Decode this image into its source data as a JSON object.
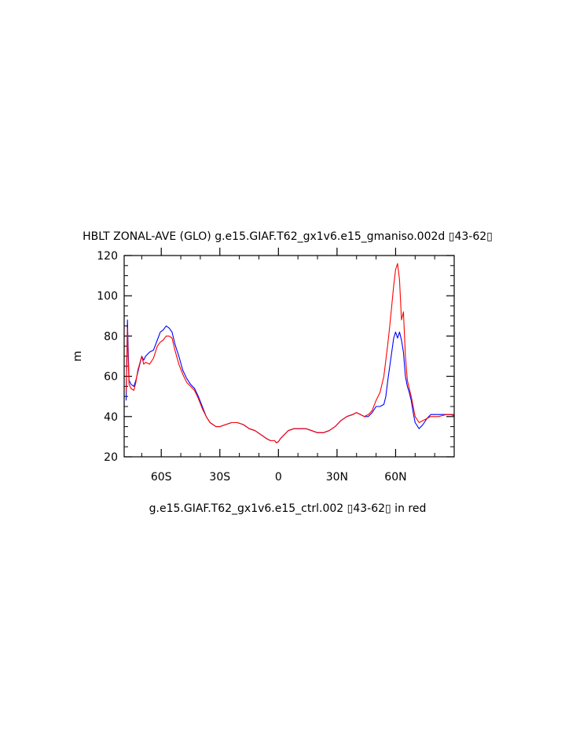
{
  "chart_data": {
    "type": "line",
    "title": "HBLT ZONAL-AVE (GLO) g.e15.GIAF.T62_gx1v6.e15_gmaniso.002d ▯43-62▯",
    "subtitle": "g.e15.GIAF.T62_gx1v6.e15_ctrl.002 ▯43-62▯ in red",
    "xlabel": "",
    "ylabel": "m",
    "xlim": [
      -79,
      90
    ],
    "ylim": [
      20,
      120
    ],
    "grid": false,
    "x_ticks": [
      {
        "value": -60,
        "label": "60S"
      },
      {
        "value": -30,
        "label": "30S"
      },
      {
        "value": 0,
        "label": "0"
      },
      {
        "value": 30,
        "label": "30N"
      },
      {
        "value": 60,
        "label": "60N"
      }
    ],
    "y_ticks": [
      {
        "value": 20,
        "label": "20"
      },
      {
        "value": 40,
        "label": "40"
      },
      {
        "value": 60,
        "label": "60"
      },
      {
        "value": 80,
        "label": "80"
      },
      {
        "value": 100,
        "label": "100"
      },
      {
        "value": 120,
        "label": "120"
      }
    ],
    "series": [
      {
        "color": "#0000ff",
        "x": [
          -78,
          -77.3,
          -77,
          -76.5,
          -75.5,
          -74,
          -73,
          -72,
          -70,
          -69,
          -68,
          -66,
          -64,
          -62,
          -60.5,
          -59,
          -57.5,
          -56,
          -54.5,
          -53,
          -51,
          -49,
          -47,
          -45,
          -43,
          -41,
          -39,
          -37,
          -35,
          -32,
          -30,
          -27,
          -24,
          -21,
          -18,
          -15,
          -12,
          -9,
          -6,
          -4,
          -2,
          -1,
          0,
          1,
          3,
          5,
          8,
          11,
          14,
          17,
          20,
          23,
          26,
          29,
          32,
          35,
          38,
          40,
          42,
          44,
          46,
          48,
          50,
          52,
          54,
          55,
          56,
          57,
          58,
          59,
          60,
          61,
          62,
          63,
          64,
          65,
          66,
          67,
          68,
          69,
          70,
          72,
          74,
          76,
          78,
          80,
          82,
          84,
          86,
          88,
          90
        ],
        "y": [
          48,
          88,
          75,
          58,
          56,
          55,
          58,
          62,
          70,
          68,
          70,
          72,
          73,
          78,
          82,
          83,
          85,
          84,
          82,
          76,
          70,
          63,
          59,
          56,
          54,
          50,
          45,
          40,
          37,
          35,
          35,
          36,
          37,
          37,
          36,
          34,
          33,
          31,
          29,
          28,
          28,
          27,
          27.5,
          29,
          31,
          33,
          34,
          34,
          34,
          33,
          32,
          32,
          33,
          35,
          38,
          40,
          41,
          42,
          41,
          40,
          40,
          42,
          45,
          45,
          46,
          50,
          58,
          65,
          72,
          79,
          82,
          79,
          82,
          78,
          72,
          60,
          55,
          52,
          48,
          42,
          37,
          34,
          36,
          39,
          41,
          41,
          41,
          41,
          41,
          41,
          40.5
        ]
      },
      {
        "color": "#ff0000",
        "x": [
          -78,
          -77.3,
          -77,
          -76.5,
          -75.5,
          -74,
          -73,
          -72,
          -70,
          -69,
          -68,
          -66,
          -64,
          -62,
          -60.5,
          -59,
          -57.5,
          -56,
          -54.5,
          -53,
          -51,
          -49,
          -47,
          -45,
          -43,
          -41,
          -39,
          -37,
          -35,
          -32,
          -30,
          -27,
          -24,
          -21,
          -18,
          -15,
          -12,
          -9,
          -6,
          -4,
          -2,
          -1,
          0,
          1,
          3,
          5,
          8,
          11,
          14,
          17,
          20,
          23,
          26,
          29,
          32,
          35,
          38,
          40,
          42,
          44,
          46,
          48,
          50,
          52,
          54,
          55,
          56,
          57,
          58,
          59,
          60,
          61,
          62,
          63,
          64,
          65,
          66,
          67,
          68,
          69,
          70,
          72,
          74,
          76,
          78,
          80,
          82,
          84,
          86,
          88,
          90
        ],
        "y": [
          52,
          84,
          70,
          56,
          54,
          53,
          57,
          63,
          70,
          66,
          67,
          66,
          69,
          75,
          77,
          78,
          80,
          80,
          79,
          73,
          66,
          61,
          57,
          55,
          53,
          49,
          44,
          40,
          37,
          35,
          35,
          36,
          37,
          37,
          36,
          34,
          33,
          31,
          29,
          28,
          28,
          27,
          27.5,
          29,
          31,
          33,
          34,
          34,
          34,
          33,
          32,
          32,
          33,
          35,
          38,
          40,
          41,
          42,
          41,
          40,
          41,
          43,
          48,
          52,
          60,
          68,
          76,
          85,
          95,
          105,
          113,
          116,
          108,
          88,
          92,
          70,
          58,
          54,
          50,
          45,
          40,
          37,
          38,
          39,
          40,
          40,
          40,
          40.5,
          41,
          41,
          41
        ]
      }
    ]
  }
}
